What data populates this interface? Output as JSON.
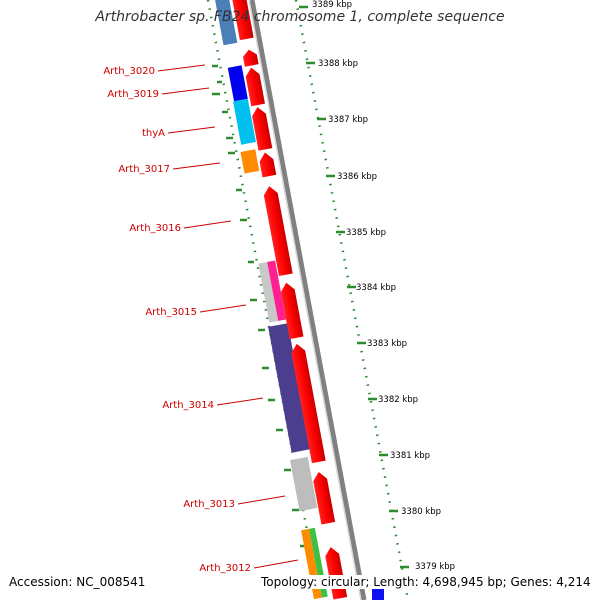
{
  "title": "Arthrobacter sp. FB24 chromosome 1, complete sequence",
  "accession_label": "Accession: NC_008541",
  "topology_label": "Topology: circular; Length: 4,698,945 bp; Genes: 4,214",
  "scale_labels": [
    {
      "id": "kbp-3389",
      "text": "3389 kbp"
    },
    {
      "id": "kbp-3388",
      "text": "3388 kbp"
    },
    {
      "id": "kbp-3387",
      "text": "3387 kbp"
    },
    {
      "id": "kbp-3386",
      "text": "3386 kbp"
    },
    {
      "id": "kbp-3385",
      "text": "3385 kbp"
    },
    {
      "id": "kbp-3384",
      "text": "3384 kbp"
    },
    {
      "id": "kbp-3383",
      "text": "3383 kbp"
    },
    {
      "id": "kbp-3382",
      "text": "3382 kbp"
    },
    {
      "id": "kbp-3381",
      "text": "3381 kbp"
    },
    {
      "id": "kbp-3380",
      "text": "3380 kbp"
    },
    {
      "id": "kbp-3379",
      "text": "3379 kbp"
    }
  ],
  "gene_labels": [
    {
      "id": "arth-3020",
      "text": "Arth_3020"
    },
    {
      "id": "arth-3019",
      "text": "Arth_3019"
    },
    {
      "id": "thya",
      "text": "thyA"
    },
    {
      "id": "arth-3017",
      "text": "Arth_3017"
    },
    {
      "id": "arth-3016",
      "text": "Arth_3016"
    },
    {
      "id": "arth-3015",
      "text": "Arth_3015"
    },
    {
      "id": "arth-3014",
      "text": "Arth_3014"
    },
    {
      "id": "arth-3013",
      "text": "Arth_3013"
    },
    {
      "id": "arth-3012",
      "text": "Arth_3012"
    }
  ],
  "colors": {
    "gene_label": "#cc0000",
    "cds": "#ff0000",
    "backbone": "#808080",
    "gc_ticks": "#2e8b2e",
    "scale_text": "#000000"
  }
}
